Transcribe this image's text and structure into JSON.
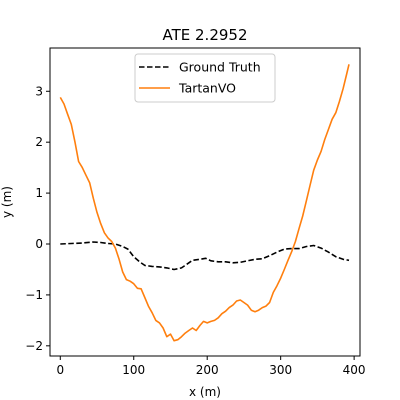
{
  "chart_data": {
    "type": "line",
    "title": "ATE 2.2952",
    "xlabel": "x (m)",
    "ylabel": "y (m)",
    "xlim": [
      -14,
      408
    ],
    "ylim": [
      -2.2,
      3.85
    ],
    "xticks": [
      0,
      100,
      200,
      300,
      400
    ],
    "yticks": [
      -2,
      -1,
      0,
      1,
      2,
      3
    ],
    "grid": false,
    "legend_position": "top-center",
    "series": [
      {
        "name": "Ground Truth",
        "color": "#000000",
        "style": "dashed",
        "points": [
          [
            0,
            0.0
          ],
          [
            15,
            0.01
          ],
          [
            30,
            0.02
          ],
          [
            45,
            0.04
          ],
          [
            55,
            0.03
          ],
          [
            65,
            0.01
          ],
          [
            75,
            0.0
          ],
          [
            85,
            -0.05
          ],
          [
            92,
            -0.1
          ],
          [
            100,
            -0.25
          ],
          [
            108,
            -0.35
          ],
          [
            115,
            -0.42
          ],
          [
            125,
            -0.44
          ],
          [
            135,
            -0.45
          ],
          [
            145,
            -0.47
          ],
          [
            155,
            -0.5
          ],
          [
            165,
            -0.47
          ],
          [
            172,
            -0.4
          ],
          [
            180,
            -0.32
          ],
          [
            190,
            -0.3
          ],
          [
            198,
            -0.28
          ],
          [
            205,
            -0.33
          ],
          [
            215,
            -0.35
          ],
          [
            225,
            -0.35
          ],
          [
            235,
            -0.37
          ],
          [
            245,
            -0.36
          ],
          [
            255,
            -0.33
          ],
          [
            265,
            -0.3
          ],
          [
            275,
            -0.29
          ],
          [
            285,
            -0.23
          ],
          [
            295,
            -0.16
          ],
          [
            305,
            -0.1
          ],
          [
            315,
            -0.09
          ],
          [
            325,
            -0.09
          ],
          [
            335,
            -0.05
          ],
          [
            345,
            -0.03
          ],
          [
            355,
            -0.08
          ],
          [
            365,
            -0.16
          ],
          [
            375,
            -0.25
          ],
          [
            385,
            -0.3
          ],
          [
            393,
            -0.32
          ]
        ]
      },
      {
        "name": "TartanVO",
        "color": "#ff7f0e",
        "style": "solid",
        "points": [
          [
            0,
            2.88
          ],
          [
            5,
            2.75
          ],
          [
            10,
            2.55
          ],
          [
            15,
            2.35
          ],
          [
            20,
            2.0
          ],
          [
            25,
            1.62
          ],
          [
            30,
            1.5
          ],
          [
            35,
            1.35
          ],
          [
            40,
            1.2
          ],
          [
            45,
            0.9
          ],
          [
            50,
            0.62
          ],
          [
            55,
            0.4
          ],
          [
            60,
            0.22
          ],
          [
            65,
            0.12
          ],
          [
            70,
            0.05
          ],
          [
            75,
            -0.08
          ],
          [
            80,
            -0.3
          ],
          [
            85,
            -0.55
          ],
          [
            90,
            -0.7
          ],
          [
            95,
            -0.73
          ],
          [
            100,
            -0.78
          ],
          [
            105,
            -0.87
          ],
          [
            110,
            -0.88
          ],
          [
            115,
            -1.05
          ],
          [
            120,
            -1.22
          ],
          [
            125,
            -1.35
          ],
          [
            130,
            -1.5
          ],
          [
            135,
            -1.55
          ],
          [
            140,
            -1.65
          ],
          [
            145,
            -1.82
          ],
          [
            150,
            -1.77
          ],
          [
            155,
            -1.9
          ],
          [
            160,
            -1.88
          ],
          [
            165,
            -1.82
          ],
          [
            170,
            -1.75
          ],
          [
            175,
            -1.7
          ],
          [
            180,
            -1.65
          ],
          [
            185,
            -1.7
          ],
          [
            190,
            -1.6
          ],
          [
            195,
            -1.52
          ],
          [
            200,
            -1.55
          ],
          [
            205,
            -1.52
          ],
          [
            210,
            -1.5
          ],
          [
            215,
            -1.45
          ],
          [
            220,
            -1.37
          ],
          [
            225,
            -1.32
          ],
          [
            230,
            -1.25
          ],
          [
            235,
            -1.2
          ],
          [
            240,
            -1.12
          ],
          [
            245,
            -1.1
          ],
          [
            250,
            -1.15
          ],
          [
            255,
            -1.2
          ],
          [
            260,
            -1.3
          ],
          [
            265,
            -1.33
          ],
          [
            270,
            -1.3
          ],
          [
            275,
            -1.25
          ],
          [
            280,
            -1.22
          ],
          [
            285,
            -1.15
          ],
          [
            290,
            -0.95
          ],
          [
            295,
            -0.82
          ],
          [
            300,
            -0.67
          ],
          [
            305,
            -0.5
          ],
          [
            310,
            -0.32
          ],
          [
            315,
            -0.15
          ],
          [
            320,
            0.05
          ],
          [
            325,
            0.3
          ],
          [
            330,
            0.55
          ],
          [
            335,
            0.85
          ],
          [
            340,
            1.15
          ],
          [
            345,
            1.45
          ],
          [
            350,
            1.65
          ],
          [
            355,
            1.82
          ],
          [
            360,
            2.05
          ],
          [
            365,
            2.25
          ],
          [
            370,
            2.45
          ],
          [
            375,
            2.58
          ],
          [
            380,
            2.8
          ],
          [
            385,
            3.05
          ],
          [
            390,
            3.35
          ],
          [
            393,
            3.53
          ]
        ]
      }
    ]
  }
}
